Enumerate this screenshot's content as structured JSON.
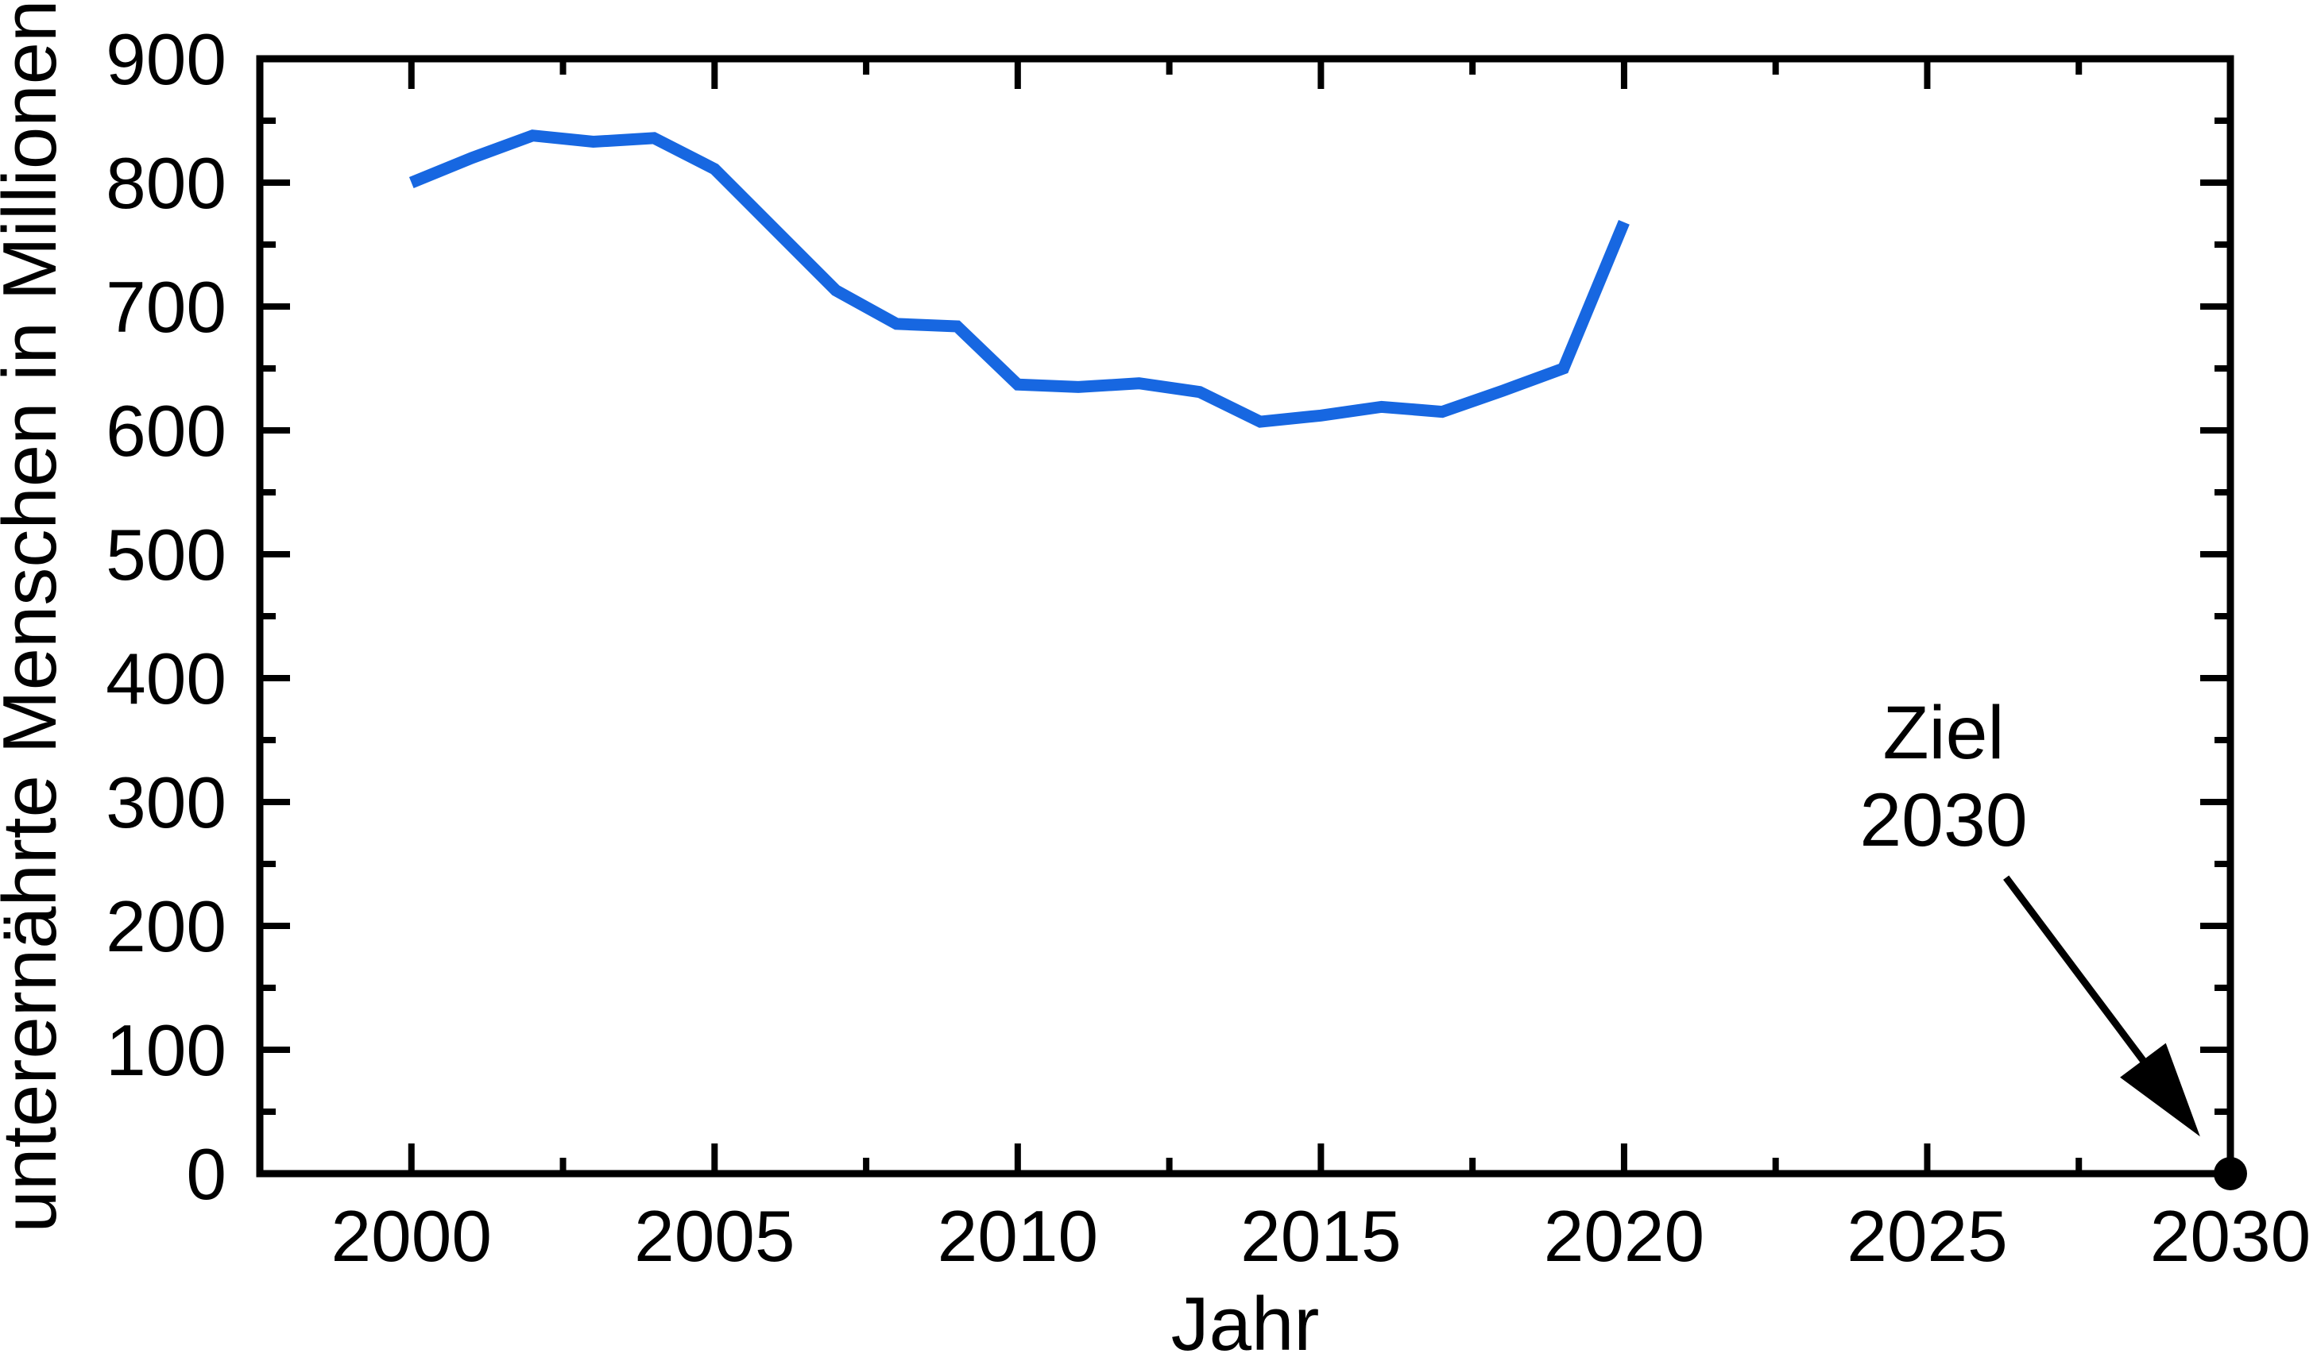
{
  "colors": {
    "line": "#1767E1",
    "axis": "#000000",
    "background": "#ffffff",
    "target_marker": "#000000"
  },
  "axes": {
    "x": {
      "label": "Jahr",
      "min": 1997.5,
      "max": 2030,
      "tick_values": [
        2000,
        2005,
        2010,
        2015,
        2020,
        2025,
        2030
      ],
      "tick_labels": [
        "2000",
        "2005",
        "2010",
        "2015",
        "2020",
        "2025",
        "2030"
      ],
      "minor_tick_values": [
        2002.5,
        2007.5,
        2012.5,
        2017.5,
        2022.5,
        2027.5
      ]
    },
    "y": {
      "label": "unterernährte Menschen in Millionen",
      "min": 0,
      "max": 900,
      "tick_values": [
        0,
        100,
        200,
        300,
        400,
        500,
        600,
        700,
        800,
        900
      ],
      "tick_labels": [
        "0",
        "100",
        "200",
        "300",
        "400",
        "500",
        "600",
        "700",
        "800",
        "900"
      ],
      "minor_tick_values": [
        50,
        150,
        250,
        350,
        450,
        550,
        650,
        750,
        850
      ]
    }
  },
  "chart_data": {
    "type": "line",
    "title": "",
    "xlabel": "Jahr",
    "ylabel": "unterernährte Menschen in Millionen",
    "xlim": [
      1997.5,
      2030
    ],
    "ylim": [
      0,
      900
    ],
    "grid": false,
    "legend": false,
    "series": [
      {
        "name": "unterernährte Menschen in Millionen",
        "color": "#1767E1",
        "x": [
          2000,
          2001,
          2002,
          2003,
          2004,
          2005,
          2006,
          2007,
          2008,
          2009,
          2010,
          2011,
          2012,
          2013,
          2014,
          2015,
          2016,
          2017,
          2018,
          2019,
          2020
        ],
        "y": [
          800,
          820,
          838,
          833,
          836,
          811,
          762,
          713,
          686,
          684,
          637,
          635,
          638,
          631,
          607,
          612,
          619,
          615,
          632,
          650,
          768
        ]
      }
    ],
    "target_point": {
      "x": 2030,
      "y": 0,
      "label": "Ziel 2030"
    }
  },
  "annotation": {
    "line1": "Ziel",
    "line2": "2030",
    "arrow": {
      "from_x": 2026.3,
      "from_y": 239,
      "to_x": 2029.5,
      "to_y": 30
    }
  }
}
